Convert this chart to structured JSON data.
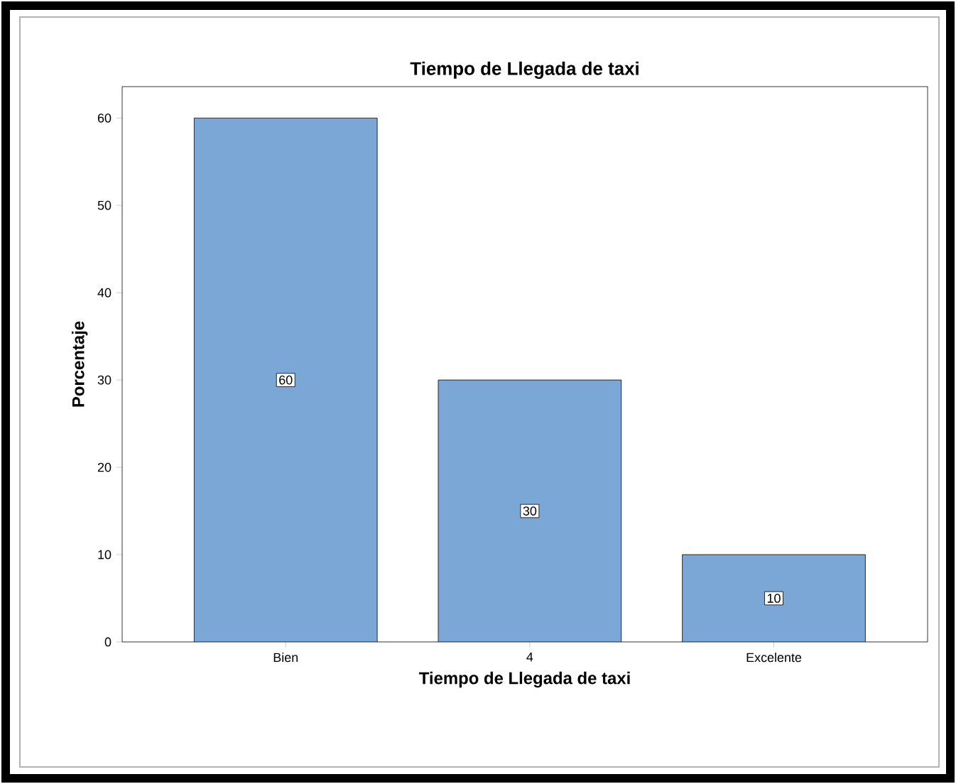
{
  "chart_data": {
    "type": "bar",
    "title": "Tiempo de Llegada de taxi",
    "xlabel": "Tiempo de Llegada de taxi",
    "ylabel": "Porcentaje",
    "categories": [
      "Bien",
      "4",
      "Excelente"
    ],
    "values": [
      60,
      30,
      10
    ],
    "color": "#7ba7d6",
    "ylim": [
      0,
      63.6
    ],
    "yticks": [
      0,
      10,
      20,
      30,
      40,
      50,
      60
    ],
    "data_labels": true,
    "grid": false
  }
}
